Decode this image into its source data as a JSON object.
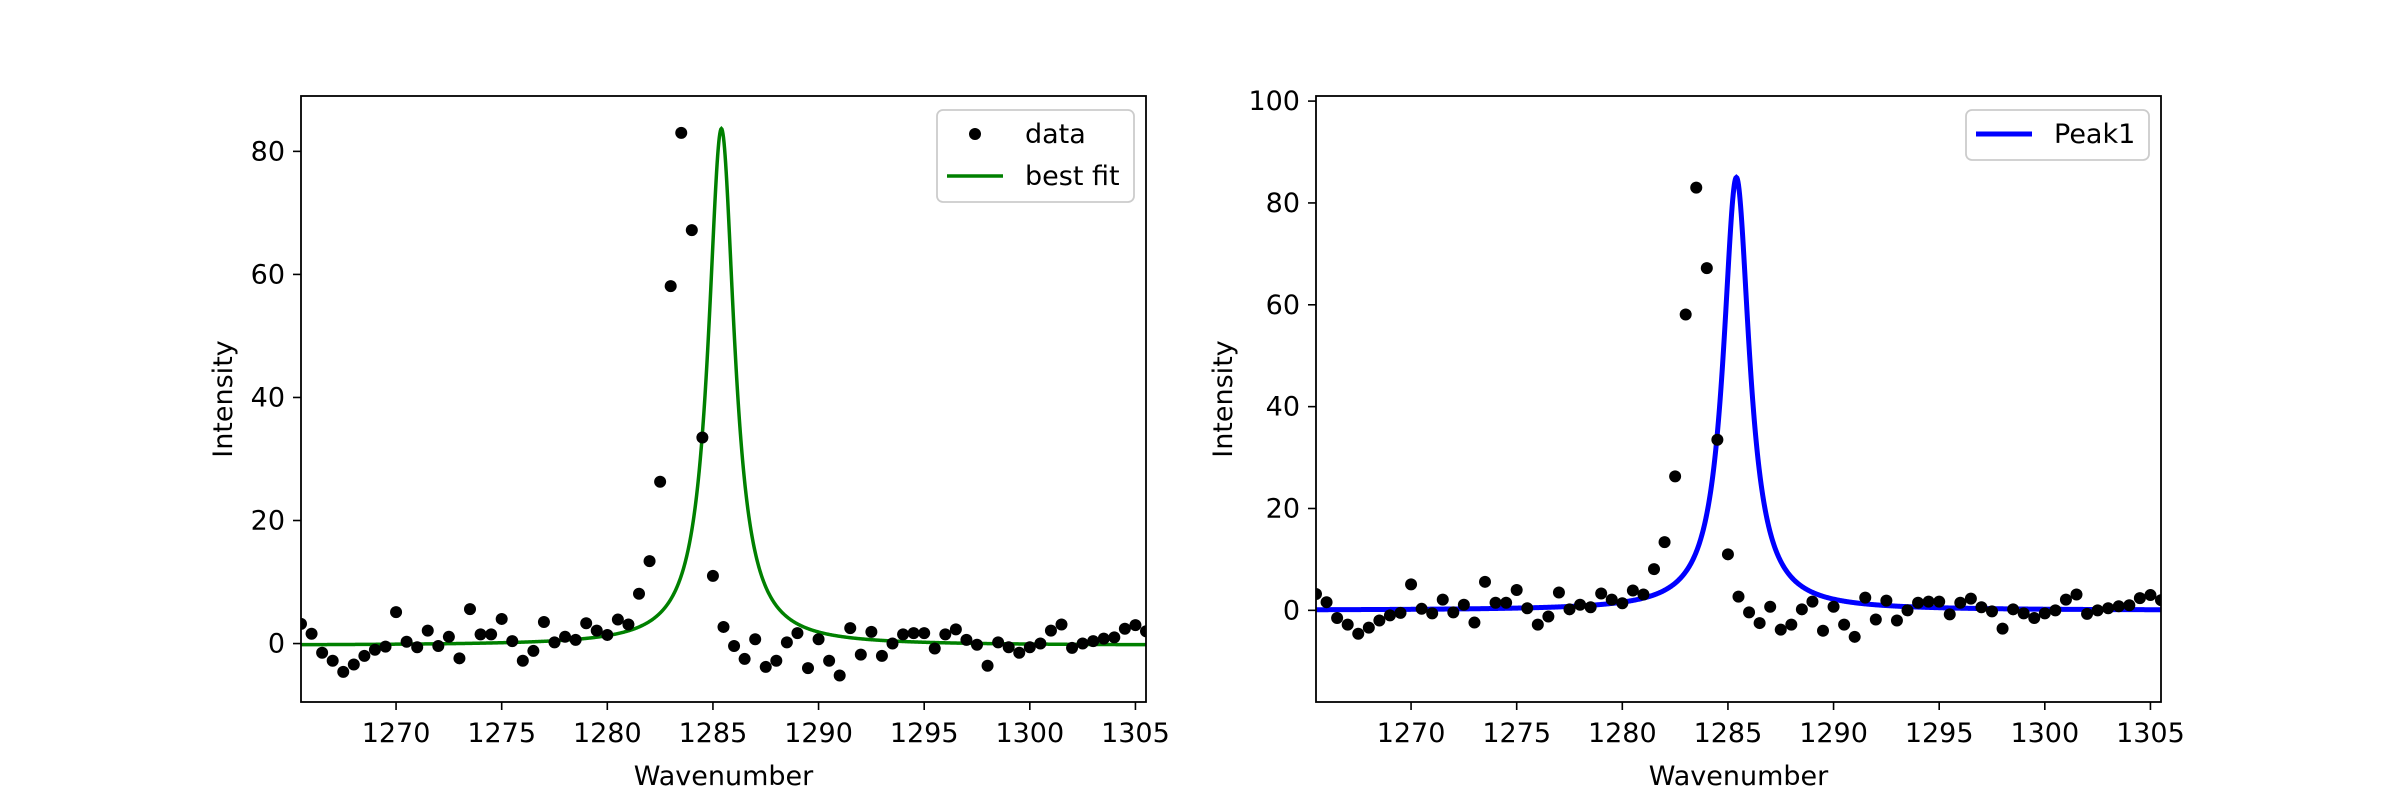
{
  "chart_data": [
    {
      "type": "scatter",
      "xlabel": "Wavenumber",
      "ylabel": "Intensity",
      "xlim": [
        1265.5,
        1305.5
      ],
      "ylim": [
        -9.5,
        89
      ],
      "xticks": [
        1270,
        1275,
        1280,
        1285,
        1290,
        1295,
        1300,
        1305
      ],
      "yticks": [
        0,
        20,
        40,
        60,
        80
      ],
      "grid": false,
      "legend_position": "top-right",
      "series": [
        {
          "name": "data",
          "kind": "markers",
          "color": "#000000",
          "x": [
            1265.5,
            1266.0,
            1266.5,
            1267.0,
            1267.5,
            1268.0,
            1268.5,
            1269.0,
            1269.5,
            1270.0,
            1270.5,
            1271.0,
            1271.5,
            1272.0,
            1272.5,
            1273.0,
            1273.5,
            1274.0,
            1274.5,
            1275.0,
            1275.5,
            1276.0,
            1276.5,
            1277.0,
            1277.5,
            1278.0,
            1278.5,
            1279.0,
            1279.5,
            1280.0,
            1280.5,
            1281.0,
            1281.5,
            1282.0,
            1282.5,
            1283.0,
            1283.5,
            1284.0,
            1284.5,
            1285.0,
            1285.5,
            1286.0,
            1286.5,
            1287.0,
            1287.5,
            1288.0,
            1288.5,
            1289.0,
            1289.5,
            1290.0,
            1290.5,
            1291.0,
            1291.5,
            1292.0,
            1292.5,
            1293.0,
            1293.5,
            1294.0,
            1294.5,
            1295.0,
            1295.5,
            1296.0,
            1296.5,
            1297.0,
            1297.5,
            1298.0,
            1298.5,
            1299.0,
            1299.5,
            1300.0,
            1300.5,
            1301.0,
            1301.5,
            1302.0,
            1302.5,
            1303.0,
            1303.5,
            1304.0,
            1304.5,
            1305.0,
            1305.5
          ],
          "y": [
            3.2,
            1.6,
            -1.5,
            -2.8,
            -4.6,
            -3.4,
            -2.0,
            -1.0,
            -0.5,
            5.1,
            0.3,
            -0.6,
            2.1,
            -0.4,
            1.1,
            -2.4,
            5.6,
            1.5,
            1.5,
            4.0,
            0.4,
            -2.8,
            -1.2,
            3.5,
            0.2,
            1.1,
            0.6,
            3.3,
            2.1,
            1.4,
            3.9,
            3.1,
            8.1,
            13.4,
            26.3,
            58.1,
            83.0,
            67.2,
            33.5,
            11.0,
            2.7,
            -0.4,
            -2.5,
            0.7,
            -3.8,
            -2.8,
            0.2,
            1.7,
            -4.0,
            0.7,
            -2.8,
            -5.2,
            2.5,
            -1.8,
            1.9,
            -2.0,
            0.0,
            1.5,
            1.7,
            1.7,
            -0.8,
            1.5,
            2.3,
            0.6,
            -0.2,
            -3.6,
            0.2,
            -0.6,
            -1.5,
            -0.6,
            0.0,
            2.1,
            3.1,
            -0.7,
            0.0,
            0.4,
            0.8,
            1.0,
            2.4,
            3.0,
            2.0
          ]
        },
        {
          "name": "best fit",
          "kind": "line",
          "color": "#008000",
          "function": "lorentzian",
          "params": {
            "amplitude": 84,
            "center": 1285.4,
            "hwhm": 0.75,
            "baseline": -0.3
          }
        }
      ]
    },
    {
      "type": "scatter",
      "xlabel": "Wavenumber",
      "ylabel": "Intensity",
      "xlim": [
        1265.5,
        1305.5
      ],
      "ylim": [
        -18,
        101
      ],
      "xticks": [
        1270,
        1275,
        1280,
        1285,
        1290,
        1295,
        1300,
        1305
      ],
      "yticks": [
        0,
        20,
        40,
        60,
        80,
        100
      ],
      "grid": false,
      "legend_position": "top-right",
      "series": [
        {
          "name": "Peak1",
          "kind": "line",
          "color": "#0000ff",
          "function": "lorentzian",
          "params": {
            "amplitude": 85,
            "center": 1285.4,
            "hwhm": 0.75,
            "baseline": 0
          }
        },
        {
          "kind": "markers",
          "color": "#000000",
          "x": [
            1265.5,
            1266.0,
            1266.5,
            1267.0,
            1267.5,
            1268.0,
            1268.5,
            1269.0,
            1269.5,
            1270.0,
            1270.5,
            1271.0,
            1271.5,
            1272.0,
            1272.5,
            1273.0,
            1273.5,
            1274.0,
            1274.5,
            1275.0,
            1275.5,
            1276.0,
            1276.5,
            1277.0,
            1277.5,
            1278.0,
            1278.5,
            1279.0,
            1279.5,
            1280.0,
            1280.5,
            1281.0,
            1281.5,
            1282.0,
            1282.5,
            1283.0,
            1283.5,
            1284.0,
            1284.5,
            1285.0,
            1285.5,
            1286.0,
            1286.5,
            1287.0,
            1287.5,
            1288.0,
            1288.5,
            1289.0,
            1289.5,
            1290.0,
            1290.5,
            1291.0,
            1291.5,
            1292.0,
            1292.5,
            1293.0,
            1293.5,
            1294.0,
            1294.5,
            1295.0,
            1295.5,
            1296.0,
            1296.5,
            1297.0,
            1297.5,
            1298.0,
            1298.5,
            1299.0,
            1299.5,
            1300.0,
            1300.5,
            1301.0,
            1301.5,
            1302.0,
            1302.5,
            1303.0,
            1303.5,
            1304.0,
            1304.5,
            1305.0,
            1305.5
          ],
          "y": [
            3.2,
            1.6,
            -1.5,
            -2.8,
            -4.6,
            -3.4,
            -2.0,
            -1.0,
            -0.5,
            5.1,
            0.3,
            -0.6,
            2.1,
            -0.4,
            1.1,
            -2.4,
            5.6,
            1.5,
            1.5,
            4.0,
            0.4,
            -2.8,
            -1.2,
            3.5,
            0.2,
            1.1,
            0.6,
            3.3,
            2.1,
            1.4,
            3.9,
            3.1,
            8.1,
            13.4,
            26.3,
            58.1,
            83.0,
            67.2,
            33.5,
            11.0,
            2.7,
            -0.4,
            -2.5,
            0.7,
            -3.8,
            -2.8,
            0.2,
            1.7,
            -4.0,
            0.7,
            -2.8,
            -5.2,
            2.5,
            -1.8,
            1.9,
            -2.0,
            0.0,
            1.5,
            1.7,
            1.7,
            -0.8,
            1.5,
            2.3,
            0.6,
            -0.2,
            -3.6,
            0.2,
            -0.6,
            -1.5,
            -0.6,
            0.0,
            2.1,
            3.1,
            -0.7,
            0.0,
            0.4,
            0.8,
            1.0,
            2.4,
            3.0,
            2.0
          ]
        }
      ]
    }
  ]
}
